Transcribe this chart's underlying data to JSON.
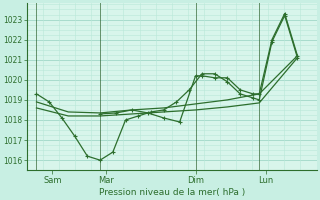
{
  "xlabel": "Pression niveau de la mer( hPa )",
  "bg_color": "#c8efe3",
  "plot_bg_color": "#d8f5eb",
  "grid_major_color": "#a0d8c8",
  "grid_minor_color": "#b8e8d8",
  "vline_color": "#336633",
  "line_color": "#2d6e2d",
  "ylim": [
    1015.5,
    1023.8
  ],
  "yticks": [
    1016,
    1017,
    1018,
    1019,
    1020,
    1021,
    1022,
    1023
  ],
  "xlim": [
    -0.3,
    8.8
  ],
  "xtick_labels": [
    "Sam",
    "Mar",
    "Dim",
    "Lun"
  ],
  "xtick_positions": [
    0.5,
    2.2,
    5.0,
    7.2
  ],
  "vline_positions": [
    0.0,
    2.0,
    5.0,
    7.0
  ],
  "line1_x": [
    0.0,
    0.4,
    0.8,
    1.2,
    1.6,
    2.0,
    2.4,
    2.8,
    3.2,
    3.6,
    4.0,
    4.4,
    4.8,
    5.2,
    5.6,
    6.0,
    6.4,
    6.8,
    7.0,
    7.4,
    7.8,
    8.2
  ],
  "line1_y": [
    1019.3,
    1018.9,
    1018.1,
    1017.2,
    1016.2,
    1016.0,
    1016.4,
    1018.0,
    1018.2,
    1018.4,
    1018.5,
    1018.9,
    1019.5,
    1020.3,
    1020.3,
    1019.9,
    1019.3,
    1019.1,
    1019.0,
    1021.9,
    1023.2,
    1021.1
  ],
  "line2_x": [
    0.0,
    1.0,
    2.0,
    3.0,
    4.0,
    5.0,
    6.0,
    7.0,
    8.2
  ],
  "line2_y": [
    1018.6,
    1018.2,
    1018.2,
    1018.3,
    1018.4,
    1018.5,
    1018.65,
    1018.85,
    1021.1
  ],
  "line3_x": [
    0.0,
    1.0,
    2.0,
    3.0,
    4.0,
    5.0,
    6.0,
    7.0,
    8.2
  ],
  "line3_y": [
    1018.9,
    1018.4,
    1018.35,
    1018.5,
    1018.6,
    1018.8,
    1019.0,
    1019.3,
    1021.2
  ],
  "line4_x": [
    2.0,
    2.5,
    3.0,
    3.5,
    4.0,
    4.5,
    5.0,
    5.2,
    5.6,
    6.0,
    6.4,
    6.8,
    7.0,
    7.4,
    7.8,
    8.2
  ],
  "line4_y": [
    1018.3,
    1018.35,
    1018.5,
    1018.35,
    1018.1,
    1017.9,
    1020.2,
    1020.2,
    1020.1,
    1020.1,
    1019.5,
    1019.3,
    1019.3,
    1022.0,
    1023.3,
    1021.2
  ]
}
